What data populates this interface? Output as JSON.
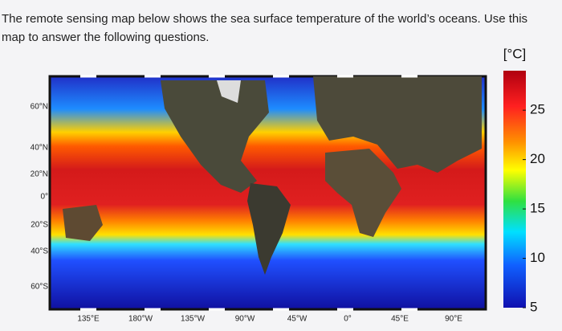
{
  "question": "The remote sensing map below shows the sea surface temperature of the world’s oceans.  Use this map to answer the following questions.",
  "map": {
    "lat_labels": [
      "60°N",
      "40°N",
      "20°N",
      "0°",
      "20°S",
      "40°S",
      "60°S"
    ],
    "lon_labels": [
      "135°E",
      "180°W",
      "135°W",
      "90°W",
      "45°W",
      "0°",
      "45°E",
      "90°E"
    ]
  },
  "colorbar": {
    "unit": "[°C]",
    "range": [
      5,
      29
    ],
    "ticks": [
      5,
      10,
      15,
      20,
      25
    ]
  }
}
